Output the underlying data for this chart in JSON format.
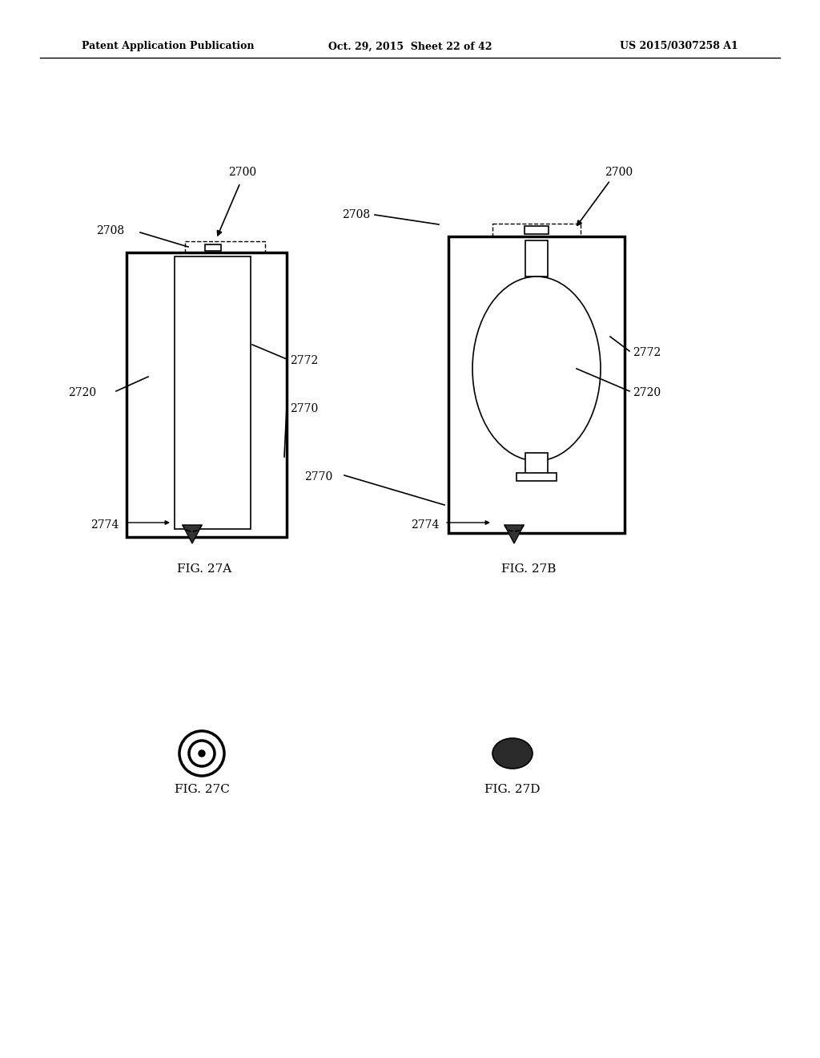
{
  "bg_color": "#ffffff",
  "header_left": "Patent Application Publication",
  "header_mid": "Oct. 29, 2015  Sheet 22 of 42",
  "header_right": "US 2015/0307258 A1",
  "fig_labels": [
    "FIG. 27A",
    "FIG. 27B",
    "FIG. 27C",
    "FIG. 27D"
  ],
  "ref_numbers": {
    "2700": "2700",
    "2708": "2708",
    "2720": "2720",
    "2770": "2770",
    "2772": "2772",
    "2774": "2774"
  }
}
